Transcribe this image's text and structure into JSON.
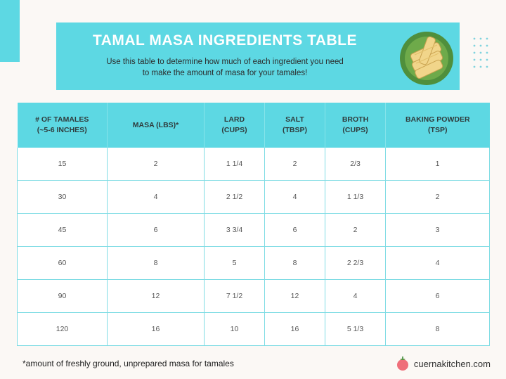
{
  "header": {
    "title": "TAMAL MASA INGREDIENTS TABLE",
    "subtitle_line1": "Use this table to determine how much of each ingredient you need",
    "subtitle_line2": "to make the amount of masa for your tamales!"
  },
  "table": {
    "columns": [
      {
        "line1": "# OF TAMALES",
        "line2": "(~5-6 INCHES)"
      },
      {
        "line1": "MASA (LBS)*",
        "line2": ""
      },
      {
        "line1": "LARD",
        "line2": "(CUPS)"
      },
      {
        "line1": "SALT",
        "line2": "(TBSP)"
      },
      {
        "line1": "BROTH",
        "line2": "(CUPS)"
      },
      {
        "line1": "BAKING POWDER",
        "line2": "(TSP)"
      }
    ],
    "rows": [
      [
        "15",
        "2",
        "1 1/4",
        "2",
        "2/3",
        "1"
      ],
      [
        "30",
        "4",
        "2 1/2",
        "4",
        "1 1/3",
        "2"
      ],
      [
        "45",
        "6",
        "3 3/4",
        "6",
        "2",
        "3"
      ],
      [
        "60",
        "8",
        "5",
        "8",
        "2 2/3",
        "4"
      ],
      [
        "90",
        "12",
        "7 1/2",
        "12",
        "4",
        "6"
      ],
      [
        "120",
        "16",
        "10",
        "16",
        "5 1/3",
        "8"
      ]
    ]
  },
  "footer": {
    "footnote": "*amount of freshly ground, unprepared masa for tamales",
    "brand": "cuernakitchen.com"
  },
  "colors": {
    "accent": "#5dd8e3",
    "grid_lines": "#7fdce4",
    "background": "#fbf8f5",
    "logo": "#ef6f7a"
  },
  "icons": [
    "tamales-plate-illustration",
    "dot-grid-decoration",
    "tomato-logo-icon"
  ]
}
